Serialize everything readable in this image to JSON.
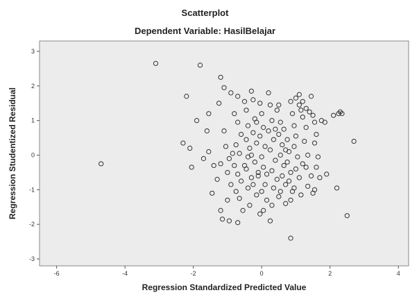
{
  "chart_data": {
    "type": "scatter",
    "title": "Scatterplot",
    "subtitle": "Dependent Variable: HasilBelajar",
    "xlabel": "Regression Standardized Predicted Value",
    "ylabel": "Regression Studentized Residual",
    "xlim": [
      -6.5,
      4.3
    ],
    "ylim": [
      -3.2,
      3.3
    ],
    "xticks": [
      -6,
      -4,
      -2,
      0,
      2,
      4
    ],
    "yticks": [
      -3,
      -2,
      -1,
      0,
      1,
      2,
      3
    ],
    "grid": false,
    "marker": "hollow-circle",
    "colors": {
      "plot_background": "#ececec",
      "marker_stroke": "#333333",
      "frame": "#888888"
    },
    "points": [
      [
        -4.7,
        -0.25
      ],
      [
        -3.1,
        2.65
      ],
      [
        -1.8,
        2.6
      ],
      [
        -2.2,
        1.7
      ],
      [
        -1.9,
        1.0
      ],
      [
        -2.3,
        0.35
      ],
      [
        -2.1,
        0.2
      ],
      [
        -2.05,
        -0.35
      ],
      [
        -1.6,
        0.7
      ],
      [
        -1.55,
        0.1
      ],
      [
        -1.55,
        1.2
      ],
      [
        -1.7,
        -0.1
      ],
      [
        -1.4,
        -0.3
      ],
      [
        -1.3,
        -0.7
      ],
      [
        -1.45,
        -1.1
      ],
      [
        -1.25,
        1.5
      ],
      [
        -1.2,
        2.25
      ],
      [
        -1.1,
        1.95
      ],
      [
        -0.9,
        1.8
      ],
      [
        -1.1,
        0.7
      ],
      [
        -1.05,
        0.25
      ],
      [
        -0.95,
        -0.1
      ],
      [
        -1.2,
        -0.25
      ],
      [
        -1.0,
        -0.5
      ],
      [
        -0.9,
        -0.85
      ],
      [
        -1.0,
        -1.3
      ],
      [
        -1.2,
        -1.6
      ],
      [
        -1.15,
        -1.85
      ],
      [
        -0.95,
        -1.9
      ],
      [
        -0.7,
        1.7
      ],
      [
        -0.8,
        1.2
      ],
      [
        -0.7,
        0.95
      ],
      [
        -0.6,
        0.6
      ],
      [
        -0.75,
        0.3
      ],
      [
        -0.65,
        0.05
      ],
      [
        -0.8,
        -0.3
      ],
      [
        -0.7,
        -0.55
      ],
      [
        -0.6,
        -0.75
      ],
      [
        -0.75,
        -1.05
      ],
      [
        -0.65,
        -1.25
      ],
      [
        -0.55,
        -1.6
      ],
      [
        -0.7,
        -1.95
      ],
      [
        -0.5,
        1.55
      ],
      [
        -0.45,
        1.3
      ],
      [
        -0.4,
        0.85
      ],
      [
        -0.45,
        0.45
      ],
      [
        -0.35,
        0.2
      ],
      [
        -0.4,
        -0.05
      ],
      [
        -0.45,
        -0.4
      ],
      [
        -0.3,
        -0.65
      ],
      [
        -0.4,
        -0.95
      ],
      [
        -0.35,
        -1.45
      ],
      [
        -0.3,
        1.85
      ],
      [
        -0.25,
        1.6
      ],
      [
        -0.2,
        1.05
      ],
      [
        -0.25,
        0.65
      ],
      [
        -0.15,
        0.35
      ],
      [
        -0.2,
        -0.2
      ],
      [
        -0.1,
        -0.5
      ],
      [
        -0.25,
        -0.85
      ],
      [
        -0.15,
        -1.15
      ],
      [
        -0.05,
        1.5
      ],
      [
        0.0,
        1.2
      ],
      [
        0.05,
        0.8
      ],
      [
        -0.05,
        0.55
      ],
      [
        0.1,
        0.25
      ],
      [
        0.0,
        -0.05
      ],
      [
        0.05,
        -0.35
      ],
      [
        -0.1,
        -0.6
      ],
      [
        0.1,
        -0.85
      ],
      [
        0.0,
        -1.05
      ],
      [
        0.15,
        -1.3
      ],
      [
        0.05,
        -1.6
      ],
      [
        -0.05,
        -1.7
      ],
      [
        0.2,
        1.8
      ],
      [
        0.25,
        1.45
      ],
      [
        0.3,
        1.0
      ],
      [
        0.2,
        0.7
      ],
      [
        0.35,
        0.45
      ],
      [
        0.25,
        0.15
      ],
      [
        0.4,
        -0.15
      ],
      [
        0.3,
        -0.45
      ],
      [
        0.45,
        -0.7
      ],
      [
        0.35,
        -0.95
      ],
      [
        0.5,
        -1.2
      ],
      [
        0.3,
        -1.45
      ],
      [
        0.25,
        -1.9
      ],
      [
        0.45,
        1.3
      ],
      [
        0.55,
        0.95
      ],
      [
        0.5,
        0.6
      ],
      [
        0.6,
        0.3
      ],
      [
        0.55,
        0.0
      ],
      [
        0.65,
        -0.3
      ],
      [
        0.6,
        -0.6
      ],
      [
        0.7,
        -0.85
      ],
      [
        0.55,
        -1.05
      ],
      [
        0.7,
        -1.4
      ],
      [
        0.65,
        0.75
      ],
      [
        0.75,
        0.45
      ],
      [
        0.8,
        0.1
      ],
      [
        0.75,
        -0.2
      ],
      [
        0.85,
        -0.5
      ],
      [
        0.8,
        -0.75
      ],
      [
        0.9,
        -1.05
      ],
      [
        0.85,
        -1.3
      ],
      [
        0.85,
        1.55
      ],
      [
        0.9,
        1.2
      ],
      [
        0.95,
        0.85
      ],
      [
        1.0,
        0.55
      ],
      [
        0.95,
        0.25
      ],
      [
        1.05,
        -0.05
      ],
      [
        1.0,
        -0.4
      ],
      [
        1.1,
        -0.65
      ],
      [
        0.95,
        -0.95
      ],
      [
        1.15,
        -1.15
      ],
      [
        0.85,
        -2.4
      ],
      [
        1.0,
        1.65
      ],
      [
        1.1,
        1.45
      ],
      [
        1.15,
        1.3
      ],
      [
        1.2,
        1.1
      ],
      [
        1.3,
        0.8
      ],
      [
        1.25,
        0.4
      ],
      [
        1.35,
        0.0
      ],
      [
        1.3,
        -0.35
      ],
      [
        1.45,
        -0.6
      ],
      [
        1.35,
        -0.9
      ],
      [
        1.5,
        -1.1
      ],
      [
        1.3,
        1.35
      ],
      [
        1.4,
        1.25
      ],
      [
        1.5,
        1.15
      ],
      [
        1.55,
        0.95
      ],
      [
        1.6,
        0.6
      ],
      [
        1.55,
        0.35
      ],
      [
        1.65,
        -0.05
      ],
      [
        1.6,
        -0.35
      ],
      [
        1.7,
        -0.65
      ],
      [
        1.55,
        -1.0
      ],
      [
        1.45,
        1.7
      ],
      [
        1.75,
        1.0
      ],
      [
        1.85,
        0.95
      ],
      [
        1.9,
        -0.55
      ],
      [
        2.1,
        1.15
      ],
      [
        2.25,
        1.2
      ],
      [
        2.3,
        1.25
      ],
      [
        2.35,
        1.2
      ],
      [
        2.2,
        -0.95
      ],
      [
        2.5,
        -1.75
      ],
      [
        2.7,
        0.4
      ],
      [
        1.1,
        1.75
      ],
      [
        1.2,
        1.55
      ],
      [
        0.5,
        1.45
      ],
      [
        -0.5,
        -0.3
      ],
      [
        0.15,
        -0.55
      ],
      [
        -0.85,
        0.05
      ],
      [
        0.4,
        0.75
      ],
      [
        -0.3,
        0.0
      ],
      [
        0.7,
        0.15
      ],
      [
        1.2,
        -0.25
      ],
      [
        -0.15,
        0.95
      ]
    ]
  }
}
